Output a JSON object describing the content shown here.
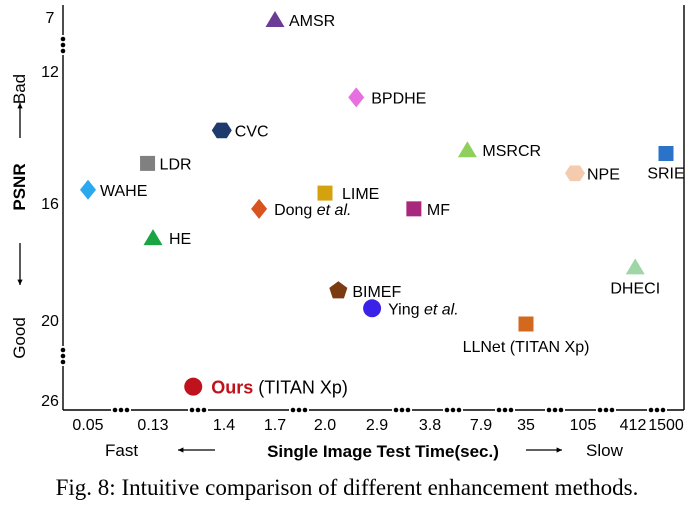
{
  "chart_data": {
    "type": "scatter",
    "x_axis": {
      "label": "Single Image Test Time(sec.)",
      "ticks": [
        "0.05",
        "0.13",
        "1.4",
        "1.7",
        "2.0",
        "2.9",
        "3.8",
        "7.9",
        "35",
        "105",
        "412",
        "1500"
      ],
      "left_label": "Fast",
      "right_label": "Slow",
      "scale": "nonuniform (broken axis)"
    },
    "y_axis": {
      "label": "PSNR",
      "ticks": [
        "7",
        "12",
        "16",
        "20",
        "26"
      ],
      "top_label": "Bad",
      "bottom_label": "Good",
      "inverted": true,
      "scale": "nonuniform (broken axis)"
    },
    "points": [
      {
        "method": "AMSR",
        "label": "AMSR",
        "time": 1.7,
        "psnr": 7.0,
        "marker": "triangle",
        "color": "#6a3c96"
      },
      {
        "method": "BPDHE",
        "label": "BPDHE",
        "time": 2.5,
        "psnr": 12.8,
        "marker": "diamond",
        "color": "#e86fe0"
      },
      {
        "method": "CVC",
        "label": "CVC",
        "time": 1.3,
        "psnr": 13.8,
        "marker": "hexagon",
        "color": "#1f3a6d"
      },
      {
        "method": "MSRCR",
        "label": "MSRCR",
        "time": 6.5,
        "psnr": 14.4,
        "marker": "triangle",
        "color": "#8fd05c"
      },
      {
        "method": "SRIE",
        "label": "SRIE",
        "time": 1500,
        "psnr": 14.5,
        "marker": "square",
        "color": "#2a73c9"
      },
      {
        "method": "LDR",
        "label": "LDR",
        "time": 0.12,
        "psnr": 14.8,
        "marker": "square",
        "color": "#808080"
      },
      {
        "method": "NPE",
        "label": "NPE",
        "time": 90,
        "psnr": 15.1,
        "marker": "hexagon",
        "color": "#f5cbb0"
      },
      {
        "method": "WAHE",
        "label": "WAHE",
        "time": 0.05,
        "psnr": 15.6,
        "marker": "diamond",
        "color": "#2aa9ee"
      },
      {
        "method": "LIME",
        "label": "LIME",
        "time": 2.0,
        "psnr": 15.7,
        "marker": "square",
        "color": "#d4a20f"
      },
      {
        "method": "Dong et al.",
        "label": "Dong",
        "label_italic": "et al.",
        "time": 1.6,
        "psnr": 16.2,
        "marker": "diamond",
        "color": "#d9531f"
      },
      {
        "method": "MF",
        "label": "MF",
        "time": 3.5,
        "psnr": 16.2,
        "marker": "square",
        "color": "#a8287e"
      },
      {
        "method": "HE",
        "label": "HE",
        "time": 0.13,
        "psnr": 17.2,
        "marker": "triangle",
        "color": "#1aa543"
      },
      {
        "method": "DHECI",
        "label": "DHECI",
        "time": 450,
        "psnr": 18.2,
        "marker": "triangle",
        "color": "#9fd6a6"
      },
      {
        "method": "BIMEF",
        "label": "BIMEF",
        "time": 2.2,
        "psnr": 19.0,
        "marker": "pentagon",
        "color": "#7a3b12"
      },
      {
        "method": "Ying et al.",
        "label": "Ying",
        "label_italic": "et al.",
        "time": 2.8,
        "psnr": 19.6,
        "marker": "circle",
        "color": "#3a23e6"
      },
      {
        "method": "LLNet (TITAN Xp)",
        "label": "LLNet (TITAN Xp)",
        "time": 35,
        "psnr": 20.3,
        "marker": "square",
        "color": "#d2691e"
      },
      {
        "method": "Ours (TITAN Xp)",
        "label": "Ours",
        "label_plain": "(TITAN Xp)",
        "time": 0.5,
        "psnr": 25.0,
        "marker": "circle",
        "color": "#c0121c",
        "highlight": true
      }
    ]
  },
  "caption": "Fig. 8: Intuitive comparison of different enhancement methods."
}
